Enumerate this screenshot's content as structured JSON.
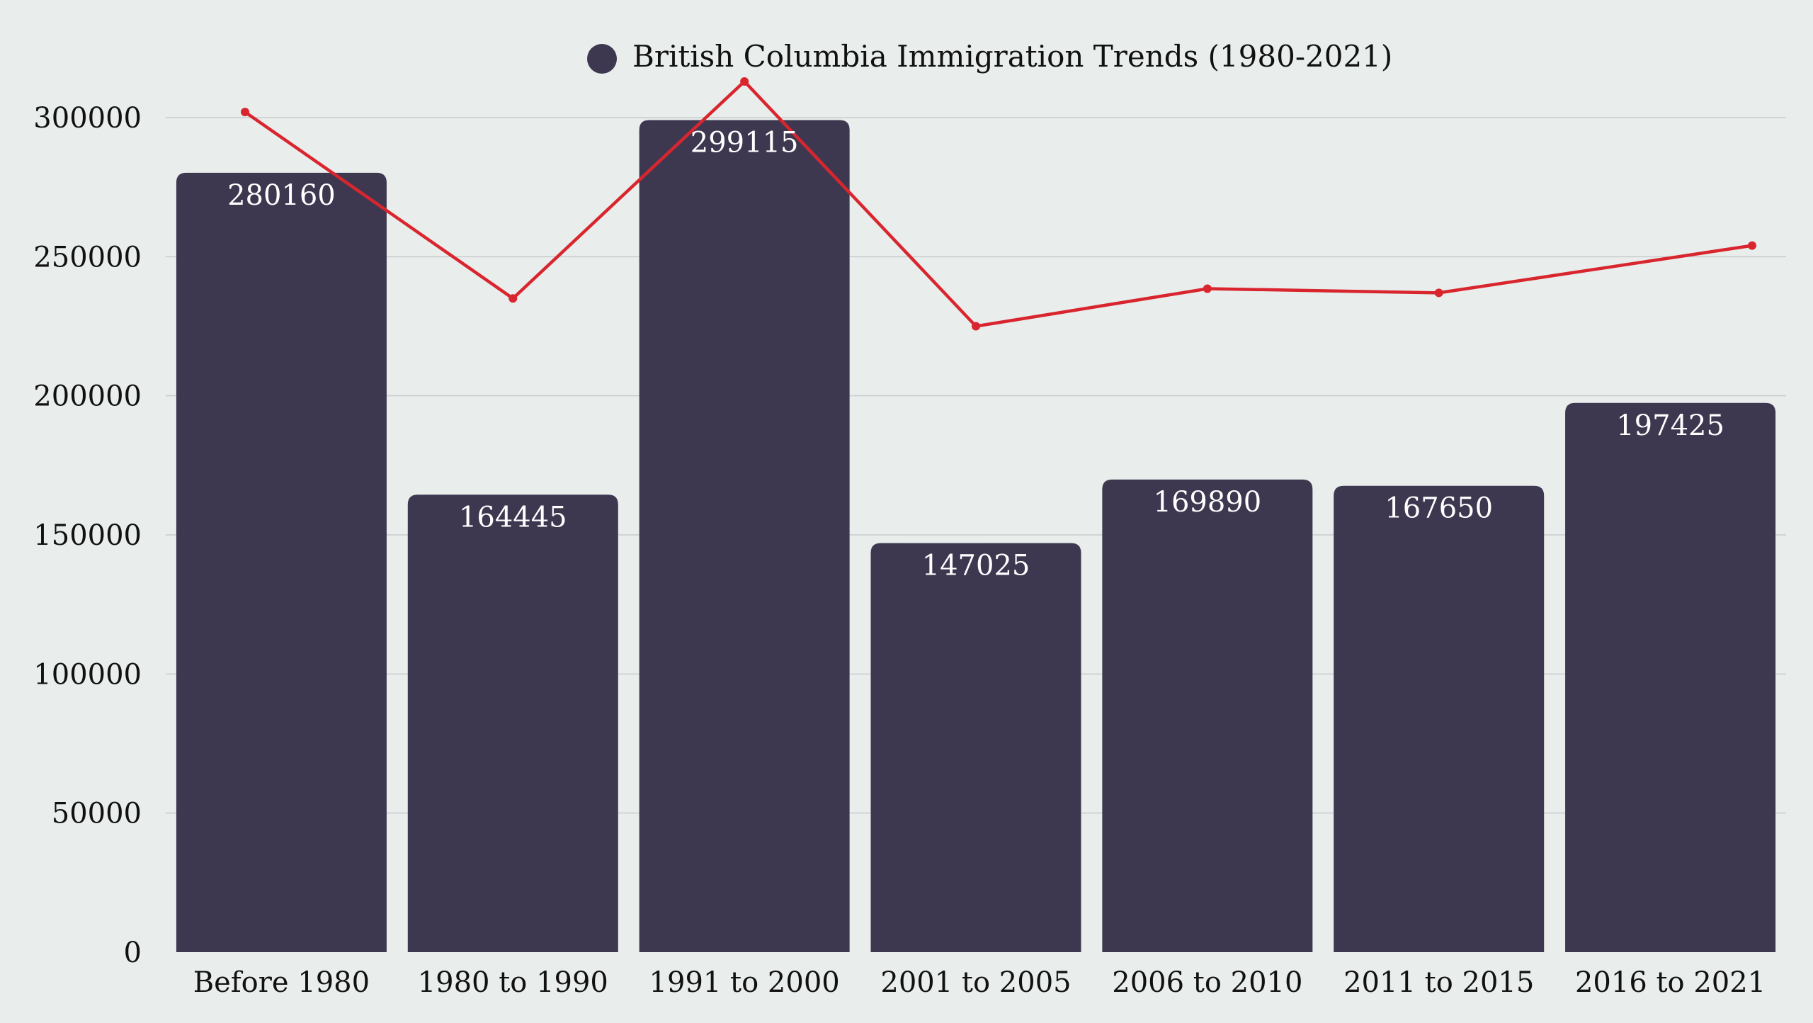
{
  "chart_data": {
    "type": "bar",
    "categories": [
      "Before 1980",
      "1980 to 1990",
      "1991 to 2000",
      "2001 to 2005",
      "2006 to 2010",
      "2011 to 2015",
      "2016 to 2021"
    ],
    "series": [
      {
        "name": "British Columbia Immigration Trends (1980-2021)",
        "type": "bar",
        "color": "#3d3850",
        "values": [
          280160,
          164445,
          299115,
          147025,
          169890,
          167650,
          197425
        ]
      },
      {
        "type": "line",
        "color": "#d9262e",
        "values": [
          302000,
          235000,
          313000,
          225000,
          238500,
          237000,
          254000
        ]
      }
    ],
    "ylim": [
      0,
      310000
    ],
    "yticks": [
      "0",
      "50000",
      "100000",
      "150000",
      "200000",
      "250000",
      "300000"
    ],
    "grid": true,
    "legend": "top-center"
  }
}
